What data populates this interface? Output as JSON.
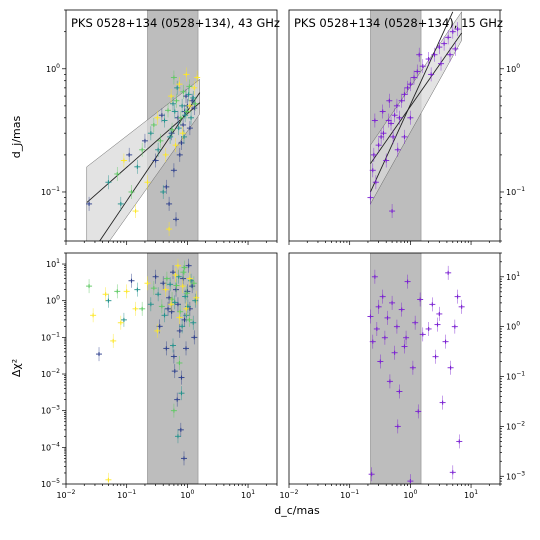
{
  "figure": {
    "xlabel": "d_c/mas",
    "ylabel_top": "d_j/mas",
    "ylabel_bottom": "Δχ²"
  },
  "chart_data": [
    {
      "id": "top-left",
      "type": "scatter",
      "title": "PKS 0528+134 (0528+134), 43 GHz",
      "xscale": "log",
      "yscale": "log",
      "xlim": [
        0.01,
        30
      ],
      "ylim": [
        0.04,
        3
      ],
      "shaded_band_x": [
        0.22,
        1.5
      ],
      "yticks": [
        0.1,
        1
      ],
      "y_axis_side": "left",
      "fit_lines": [
        {
          "name": "fit-shallow",
          "x": [
            0.022,
            1.6
          ],
          "y": [
            0.082,
            0.53
          ]
        },
        {
          "name": "fit-steep",
          "x": [
            0.022,
            1.6
          ],
          "y": [
            0.028,
            0.64
          ]
        }
      ],
      "confidence_band": {
        "x": [
          0.022,
          1.6
        ],
        "lower": [
          0.022,
          0.43
        ],
        "upper": [
          0.16,
          0.82
        ]
      },
      "series": [
        {
          "color": "#2c3e8c",
          "points": [
            [
              0.024,
              0.08
            ],
            [
              0.11,
              0.2
            ],
            [
              0.2,
              0.26
            ],
            [
              0.3,
              0.18
            ],
            [
              0.45,
              0.11
            ],
            [
              0.55,
              0.3
            ],
            [
              0.6,
              0.15
            ],
            [
              0.7,
              0.4
            ],
            [
              0.8,
              0.25
            ],
            [
              0.9,
              0.45
            ],
            [
              1.0,
              0.5
            ],
            [
              1.1,
              0.33
            ],
            [
              1.2,
              0.55
            ],
            [
              0.38,
              0.42
            ],
            [
              0.5,
              0.08
            ],
            [
              0.65,
              0.06
            ],
            [
              0.75,
              0.2
            ],
            [
              0.85,
              0.35
            ],
            [
              0.95,
              0.6
            ],
            [
              1.3,
              0.48
            ]
          ]
        },
        {
          "color": "#21918c",
          "points": [
            [
              0.05,
              0.12
            ],
            [
              0.08,
              0.08
            ],
            [
              0.15,
              0.16
            ],
            [
              0.25,
              0.3
            ],
            [
              0.33,
              0.22
            ],
            [
              0.42,
              0.38
            ],
            [
              0.52,
              0.28
            ],
            [
              0.62,
              0.45
            ],
            [
              0.72,
              0.33
            ],
            [
              0.82,
              0.5
            ],
            [
              0.92,
              0.42
            ],
            [
              1.05,
              0.62
            ],
            [
              1.15,
              0.4
            ],
            [
              0.4,
              0.1
            ],
            [
              0.58,
              0.52
            ],
            [
              0.68,
              0.7
            ],
            [
              0.88,
              0.28
            ],
            [
              1.25,
              0.58
            ]
          ]
        },
        {
          "color": "#5ec962",
          "points": [
            [
              0.07,
              0.14
            ],
            [
              0.12,
              0.1
            ],
            [
              0.18,
              0.22
            ],
            [
              0.28,
              0.35
            ],
            [
              0.36,
              0.26
            ],
            [
              0.48,
              0.46
            ],
            [
              0.56,
              0.32
            ],
            [
              0.66,
              0.55
            ],
            [
              0.78,
              0.4
            ],
            [
              0.86,
              0.65
            ],
            [
              0.98,
              0.45
            ],
            [
              1.08,
              0.72
            ],
            [
              1.35,
              0.52
            ],
            [
              0.6,
              0.85
            ]
          ]
        },
        {
          "color": "#fde725",
          "points": [
            [
              0.09,
              0.18
            ],
            [
              0.14,
              0.07
            ],
            [
              0.22,
              0.12
            ],
            [
              0.32,
              0.4
            ],
            [
              0.44,
              0.2
            ],
            [
              0.54,
              0.6
            ],
            [
              0.64,
              0.24
            ],
            [
              0.74,
              0.75
            ],
            [
              0.84,
              0.3
            ],
            [
              0.96,
              0.9
            ],
            [
              1.1,
              0.5
            ],
            [
              1.3,
              0.7
            ],
            [
              1.45,
              0.85
            ],
            [
              0.5,
              0.05
            ]
          ]
        }
      ]
    },
    {
      "id": "top-right",
      "type": "scatter",
      "title": "PKS 0528+134 (0528+134), 15 GHz",
      "xscale": "log",
      "yscale": "log",
      "xlim": [
        0.01,
        30
      ],
      "ylim": [
        0.04,
        3
      ],
      "shaded_band_x": [
        0.22,
        1.5
      ],
      "yticks": [
        0.1,
        1
      ],
      "y_axis_side": "right",
      "fit_lines": [
        {
          "name": "fit-shallow",
          "x": [
            0.22,
            7.0
          ],
          "y": [
            0.17,
            1.95
          ]
        },
        {
          "name": "fit-steep",
          "x": [
            0.22,
            5.0
          ],
          "y": [
            0.1,
            2.9
          ]
        }
      ],
      "confidence_band": {
        "x": [
          0.22,
          7.0
        ],
        "lower": [
          0.08,
          1.7
        ],
        "upper": [
          0.24,
          2.9
        ]
      },
      "series": [
        {
          "color": "#7a1fd2",
          "points": [
            [
              0.22,
              0.09
            ],
            [
              0.24,
              0.15
            ],
            [
              0.25,
              0.2
            ],
            [
              0.27,
              0.12
            ],
            [
              0.3,
              0.24
            ],
            [
              0.33,
              0.28
            ],
            [
              0.36,
              0.3
            ],
            [
              0.4,
              0.18
            ],
            [
              0.44,
              0.38
            ],
            [
              0.48,
              0.36
            ],
            [
              0.52,
              0.28
            ],
            [
              0.55,
              0.42
            ],
            [
              0.6,
              0.5
            ],
            [
              0.66,
              0.4
            ],
            [
              0.72,
              0.55
            ],
            [
              0.8,
              0.62
            ],
            [
              0.9,
              0.7
            ],
            [
              1.0,
              0.75
            ],
            [
              1.15,
              0.85
            ],
            [
              1.3,
              0.95
            ],
            [
              1.6,
              1.05
            ],
            [
              2.0,
              1.2
            ],
            [
              2.5,
              1.3
            ],
            [
              3.0,
              1.5
            ],
            [
              3.6,
              1.6
            ],
            [
              4.2,
              1.8
            ],
            [
              5.0,
              2.0
            ],
            [
              6.0,
              2.1
            ],
            [
              0.5,
              0.07
            ],
            [
              0.35,
              0.45
            ],
            [
              0.62,
              0.22
            ],
            [
              0.8,
              0.28
            ],
            [
              1.0,
              0.4
            ],
            [
              1.4,
              1.3
            ],
            [
              2.2,
              0.9
            ],
            [
              3.2,
              1.1
            ],
            [
              4.5,
              1.3
            ],
            [
              5.5,
              1.45
            ],
            [
              0.26,
              0.38
            ],
            [
              0.45,
              0.55
            ]
          ]
        }
      ]
    },
    {
      "id": "bottom-left",
      "type": "scatter",
      "xscale": "log",
      "yscale": "log",
      "xlim": [
        0.01,
        30
      ],
      "ylim": [
        1e-05,
        20
      ],
      "shaded_band_x": [
        0.22,
        1.5
      ],
      "yticks": [
        1e-05,
        0.0001,
        0.001,
        0.01,
        0.1,
        1,
        10
      ],
      "y_axis_side": "left",
      "series": [
        {
          "color": "#2c3e8c",
          "points": [
            [
              0.035,
              0.035
            ],
            [
              0.12,
              3.5
            ],
            [
              0.3,
              4.5
            ],
            [
              0.35,
              0.2
            ],
            [
              0.45,
              0.05
            ],
            [
              0.5,
              1.2
            ],
            [
              0.55,
              0.5
            ],
            [
              0.6,
              0.03
            ],
            [
              0.65,
              2.0
            ],
            [
              0.7,
              0.8
            ],
            [
              0.75,
              0.15
            ],
            [
              0.8,
              0.008
            ],
            [
              0.85,
              4.0
            ],
            [
              0.9,
              0.3
            ],
            [
              1.0,
              1.8
            ],
            [
              1.1,
              0.6
            ],
            [
              1.2,
              2.5
            ],
            [
              1.3,
              0.1
            ],
            [
              0.4,
              3.0
            ],
            [
              0.58,
              6.0
            ],
            [
              0.68,
              0.002
            ],
            [
              0.78,
              0.0003
            ],
            [
              0.88,
              5e-05
            ],
            [
              0.95,
              0.05
            ],
            [
              1.05,
              9.0
            ],
            [
              0.48,
              0.6
            ],
            [
              0.62,
              0.012
            ]
          ]
        },
        {
          "color": "#21918c",
          "points": [
            [
              0.05,
              1.0
            ],
            [
              0.09,
              0.3
            ],
            [
              0.15,
              2.0
            ],
            [
              0.25,
              0.8
            ],
            [
              0.33,
              1.5
            ],
            [
              0.42,
              0.4
            ],
            [
              0.52,
              2.8
            ],
            [
              0.62,
              0.9
            ],
            [
              0.72,
              4.5
            ],
            [
              0.82,
              0.2
            ],
            [
              0.92,
              1.3
            ],
            [
              1.02,
              0.7
            ],
            [
              1.15,
              3.5
            ],
            [
              1.25,
              0.25
            ],
            [
              0.58,
              0.06
            ],
            [
              0.7,
              0.0002
            ],
            [
              0.8,
              0.003
            ],
            [
              0.96,
              0.4
            ],
            [
              1.35,
              1.0
            ]
          ]
        },
        {
          "color": "#5ec962",
          "points": [
            [
              0.024,
              2.5
            ],
            [
              0.07,
              1.8
            ],
            [
              0.18,
              0.6
            ],
            [
              0.28,
              2.2
            ],
            [
              0.38,
              0.7
            ],
            [
              0.46,
              4.0
            ],
            [
              0.56,
              1.1
            ],
            [
              0.66,
              2.6
            ],
            [
              0.76,
              0.5
            ],
            [
              0.86,
              6.0
            ],
            [
              0.98,
              1.6
            ],
            [
              1.08,
              0.3
            ],
            [
              1.28,
              3.0
            ],
            [
              0.6,
              0.001
            ],
            [
              0.74,
              0.02
            ],
            [
              0.9,
              8.0
            ]
          ]
        },
        {
          "color": "#fde725",
          "points": [
            [
              0.028,
              0.4
            ],
            [
              0.045,
              1.5
            ],
            [
              0.06,
              0.08
            ],
            [
              0.08,
              0.25
            ],
            [
              0.1,
              1.8
            ],
            [
              0.14,
              0.6
            ],
            [
              0.22,
              3.0
            ],
            [
              0.32,
              0.15
            ],
            [
              0.44,
              2.0
            ],
            [
              0.54,
              0.8
            ],
            [
              0.64,
              5.0
            ],
            [
              0.74,
              0.35
            ],
            [
              0.84,
              2.5
            ],
            [
              0.96,
              0.6
            ],
            [
              1.1,
              4.0
            ],
            [
              1.4,
              1.2
            ],
            [
              0.05,
              1.3e-05
            ],
            [
              0.7,
              9.0
            ]
          ]
        }
      ]
    },
    {
      "id": "bottom-right",
      "type": "scatter",
      "xscale": "log",
      "yscale": "log",
      "xlim": [
        0.01,
        30
      ],
      "ylim": [
        0.0007,
        30
      ],
      "shaded_band_x": [
        0.22,
        1.5
      ],
      "yticks": [
        0.001,
        0.01,
        0.1,
        1,
        10
      ],
      "y_axis_side": "right",
      "series": [
        {
          "color": "#7a1fd2",
          "points": [
            [
              0.22,
              1.6
            ],
            [
              0.23,
              0.0011
            ],
            [
              0.24,
              0.5
            ],
            [
              0.26,
              10.0
            ],
            [
              0.28,
              0.9
            ],
            [
              0.3,
              2.5
            ],
            [
              0.32,
              0.2
            ],
            [
              0.35,
              4.0
            ],
            [
              0.38,
              0.6
            ],
            [
              0.42,
              1.5
            ],
            [
              0.46,
              0.08
            ],
            [
              0.5,
              3.0
            ],
            [
              0.55,
              0.3
            ],
            [
              0.6,
              1.0
            ],
            [
              0.66,
              0.05
            ],
            [
              0.72,
              2.2
            ],
            [
              0.8,
              0.4
            ],
            [
              0.9,
              8.0
            ],
            [
              1.0,
              0.0008
            ],
            [
              1.1,
              0.15
            ],
            [
              1.2,
              1.2
            ],
            [
              1.35,
              0.02
            ],
            [
              1.6,
              0.7
            ],
            [
              2.0,
              0.9
            ],
            [
              2.3,
              2.8
            ],
            [
              2.6,
              0.25
            ],
            [
              3.0,
              1.8
            ],
            [
              3.4,
              0.03
            ],
            [
              3.8,
              0.5
            ],
            [
              4.2,
              12.0
            ],
            [
              4.6,
              0.15
            ],
            [
              5.0,
              0.0012
            ],
            [
              5.4,
              1.0
            ],
            [
              6.0,
              4.0
            ],
            [
              6.4,
              0.005
            ],
            [
              7.0,
              2.5
            ],
            [
              0.62,
              0.01
            ],
            [
              0.85,
              0.6
            ],
            [
              1.45,
              3.5
            ],
            [
              2.8,
              1.1
            ]
          ]
        }
      ]
    }
  ]
}
